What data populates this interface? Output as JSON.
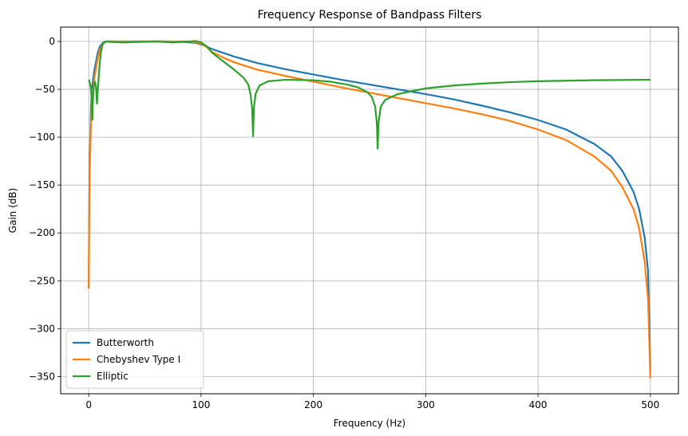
{
  "chart_data": {
    "type": "line",
    "title": "Frequency Response of Bandpass Filters",
    "xlabel": "Frequency (Hz)",
    "ylabel": "Gain (dB)",
    "xlim": [
      -25,
      525
    ],
    "ylim": [
      -368,
      15
    ],
    "xticks": [
      0,
      100,
      200,
      300,
      400,
      500
    ],
    "xtick_labels": [
      "0",
      "100",
      "200",
      "300",
      "400",
      "500"
    ],
    "yticks": [
      0,
      -50,
      -100,
      -150,
      -200,
      -250,
      -300,
      -350
    ],
    "ytick_labels": [
      "0",
      "−50",
      "−100",
      "−150",
      "−200",
      "−250",
      "−300",
      "−350"
    ],
    "grid": true,
    "legend_position": "lower-left",
    "series": [
      {
        "name": "Butterworth",
        "color": "#1f77b4",
        "points": [
          [
            0,
            -258
          ],
          [
            0.5,
            -160
          ],
          [
            1,
            -120
          ],
          [
            2,
            -70
          ],
          [
            3,
            -48
          ],
          [
            5,
            -30
          ],
          [
            8,
            -12
          ],
          [
            10,
            -5
          ],
          [
            13,
            -1
          ],
          [
            16,
            0
          ],
          [
            30,
            0
          ],
          [
            50,
            0
          ],
          [
            70,
            0
          ],
          [
            85,
            -0.5
          ],
          [
            95,
            -1.5
          ],
          [
            100,
            -3
          ],
          [
            110,
            -8
          ],
          [
            120,
            -12
          ],
          [
            130,
            -16
          ],
          [
            150,
            -22.5
          ],
          [
            175,
            -29
          ],
          [
            200,
            -34.5
          ],
          [
            225,
            -40
          ],
          [
            250,
            -45
          ],
          [
            275,
            -50
          ],
          [
            300,
            -55
          ],
          [
            325,
            -60.5
          ],
          [
            350,
            -67
          ],
          [
            375,
            -74
          ],
          [
            400,
            -82
          ],
          [
            425,
            -92
          ],
          [
            450,
            -107
          ],
          [
            465,
            -120
          ],
          [
            475,
            -135
          ],
          [
            485,
            -157
          ],
          [
            490,
            -175
          ],
          [
            495,
            -205
          ],
          [
            498,
            -240
          ],
          [
            500,
            -345
          ]
        ]
      },
      {
        "name": "Chebyshev Type I",
        "color": "#ff7f0e",
        "points": [
          [
            0,
            -258
          ],
          [
            0.5,
            -175
          ],
          [
            1,
            -130
          ],
          [
            2,
            -85
          ],
          [
            3,
            -60
          ],
          [
            5,
            -38
          ],
          [
            8,
            -18
          ],
          [
            10,
            -8
          ],
          [
            13,
            -2
          ],
          [
            16,
            0
          ],
          [
            30,
            0
          ],
          [
            60,
            0
          ],
          [
            90,
            0
          ],
          [
            100,
            -2
          ],
          [
            105,
            -6
          ],
          [
            110,
            -11
          ],
          [
            120,
            -17
          ],
          [
            130,
            -22
          ],
          [
            150,
            -29.5
          ],
          [
            175,
            -36
          ],
          [
            200,
            -42
          ],
          [
            225,
            -48
          ],
          [
            250,
            -53.5
          ],
          [
            275,
            -59
          ],
          [
            300,
            -64.5
          ],
          [
            325,
            -70
          ],
          [
            350,
            -76
          ],
          [
            375,
            -83
          ],
          [
            400,
            -92
          ],
          [
            425,
            -103
          ],
          [
            450,
            -120
          ],
          [
            465,
            -135
          ],
          [
            475,
            -152
          ],
          [
            485,
            -175
          ],
          [
            490,
            -195
          ],
          [
            495,
            -230
          ],
          [
            498,
            -270
          ],
          [
            500,
            -352
          ]
        ]
      },
      {
        "name": "Elliptic",
        "color": "#2ca02c",
        "points": [
          [
            0,
            -40
          ],
          [
            1,
            -43
          ],
          [
            2,
            -50
          ],
          [
            2.8,
            -65
          ],
          [
            3.2,
            -82
          ],
          [
            3.6,
            -65
          ],
          [
            4.5,
            -46
          ],
          [
            5.5,
            -42
          ],
          [
            6.5,
            -48
          ],
          [
            7.3,
            -65
          ],
          [
            8,
            -52
          ],
          [
            9,
            -35
          ],
          [
            10,
            -20
          ],
          [
            11,
            -10
          ],
          [
            12,
            -5
          ],
          [
            13,
            -1.5
          ],
          [
            15,
            0
          ],
          [
            20,
            -0.5
          ],
          [
            30,
            -1
          ],
          [
            45,
            -0.5
          ],
          [
            60,
            0
          ],
          [
            75,
            -1
          ],
          [
            90,
            0
          ],
          [
            95,
            0.5
          ],
          [
            100,
            -1
          ],
          [
            105,
            -5
          ],
          [
            110,
            -12
          ],
          [
            120,
            -21
          ],
          [
            130,
            -30
          ],
          [
            138,
            -38
          ],
          [
            142,
            -45
          ],
          [
            144,
            -55
          ],
          [
            145.5,
            -70
          ],
          [
            146.3,
            -99
          ],
          [
            147,
            -70
          ],
          [
            148.5,
            -55
          ],
          [
            152,
            -46
          ],
          [
            160,
            -41.5
          ],
          [
            175,
            -40
          ],
          [
            200,
            -40.5
          ],
          [
            215,
            -42
          ],
          [
            230,
            -45
          ],
          [
            240,
            -48
          ],
          [
            248,
            -53
          ],
          [
            252,
            -58
          ],
          [
            255,
            -68
          ],
          [
            256.5,
            -85
          ],
          [
            257.2,
            -112
          ],
          [
            258,
            -85
          ],
          [
            260,
            -68
          ],
          [
            264,
            -61
          ],
          [
            275,
            -55
          ],
          [
            300,
            -49
          ],
          [
            325,
            -46
          ],
          [
            350,
            -44
          ],
          [
            375,
            -42.5
          ],
          [
            400,
            -41.5
          ],
          [
            450,
            -40.5
          ],
          [
            500,
            -40
          ]
        ]
      }
    ]
  }
}
